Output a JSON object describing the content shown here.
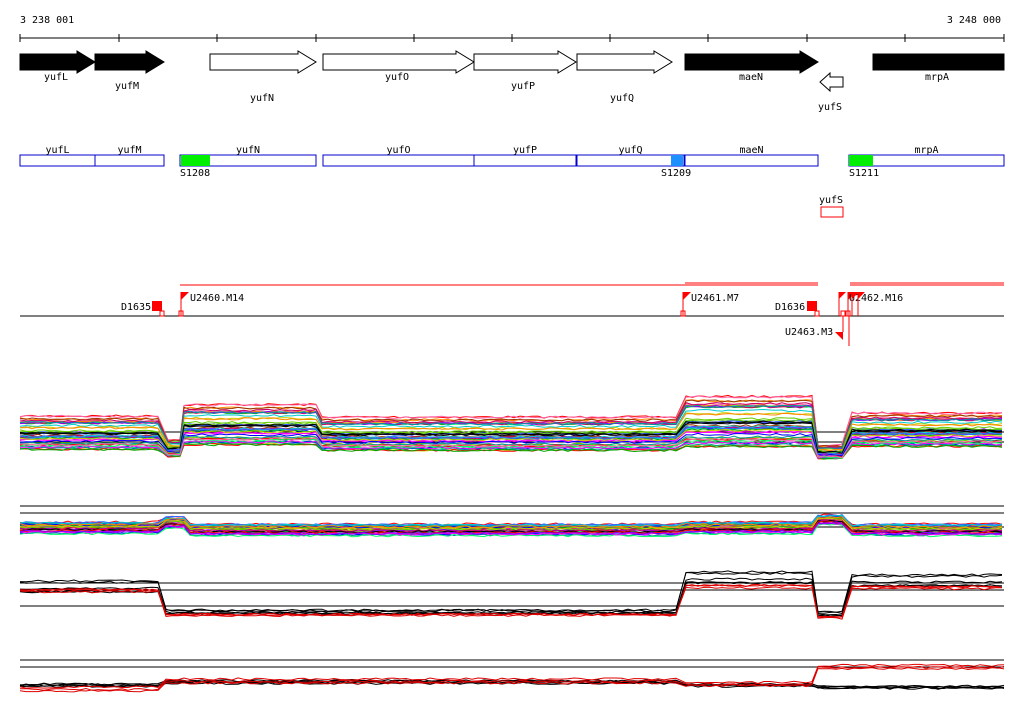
{
  "ruler": {
    "start_label": "3 238 001",
    "end_label": "3 248 000"
  },
  "genes": [
    {
      "name": "yufL",
      "strand": "+",
      "filled": true
    },
    {
      "name": "yufM",
      "strand": "+",
      "filled": true
    },
    {
      "name": "yufN",
      "strand": "+",
      "filled": false
    },
    {
      "name": "yufO",
      "strand": "+",
      "filled": false
    },
    {
      "name": "yufP",
      "strand": "+",
      "filled": false
    },
    {
      "name": "yufQ",
      "strand": "+",
      "filled": false
    },
    {
      "name": "maeN",
      "strand": "+",
      "filled": true
    },
    {
      "name": "yufS",
      "strand": "-",
      "filled": false
    },
    {
      "name": "mrpA",
      "strand": "+",
      "filled": true
    }
  ],
  "transcript_genes": [
    "yufL",
    "yufM",
    "yufN",
    "yufO",
    "yufP",
    "yufQ",
    "maeN",
    "mrpA"
  ],
  "transcript_extra": {
    "name": "yufS"
  },
  "sites": [
    {
      "label": "S1208",
      "color": "#00ee00"
    },
    {
      "label": "S1209",
      "color": "#1e90ff"
    },
    {
      "label": "S1211",
      "color": "#00ee00"
    }
  ],
  "features": [
    {
      "label": "D1635"
    },
    {
      "label": "U2460.M14"
    },
    {
      "label": "U2461.M7"
    },
    {
      "label": "D1636"
    },
    {
      "label": "U2463.M3"
    },
    {
      "label": "U2462.M16"
    }
  ],
  "colors": {
    "axis": "#000000",
    "transcript_box": "#0000cc",
    "feature": "#ff0000",
    "profile_red": "#dd0000"
  }
}
